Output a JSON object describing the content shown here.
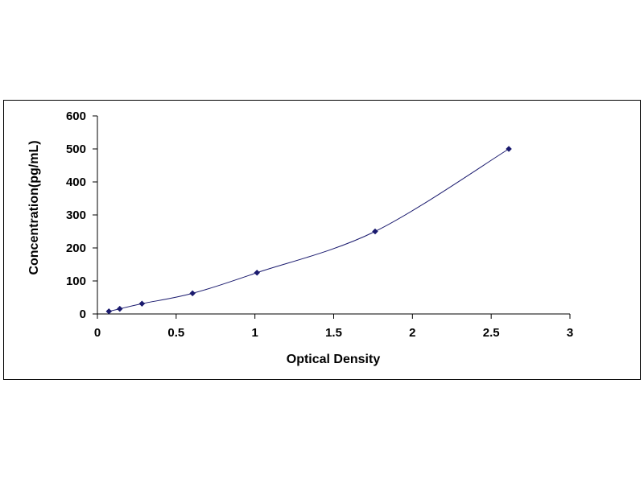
{
  "chart_data": {
    "type": "scatter",
    "title": "",
    "xlabel": "Optical Density",
    "ylabel": "Concentration(pg/mL)",
    "xlim": [
      0,
      3
    ],
    "ylim": [
      0,
      600
    ],
    "x_ticks": [
      "0",
      "0.5",
      "1",
      "1.5",
      "2",
      "2.5",
      "3"
    ],
    "y_ticks": [
      "0",
      "100",
      "200",
      "300",
      "400",
      "500",
      "600"
    ],
    "grid": false,
    "legend": "none",
    "series": [
      {
        "x": [
          0.073,
          0.142,
          0.283,
          0.604,
          1.013,
          1.763,
          2.612
        ],
        "y": [
          7.8,
          15.6,
          31.2,
          62.5,
          125,
          250,
          500
        ],
        "marker": "diamond",
        "fit_line": "smooth curve",
        "color": "#1a1a6e"
      }
    ]
  }
}
